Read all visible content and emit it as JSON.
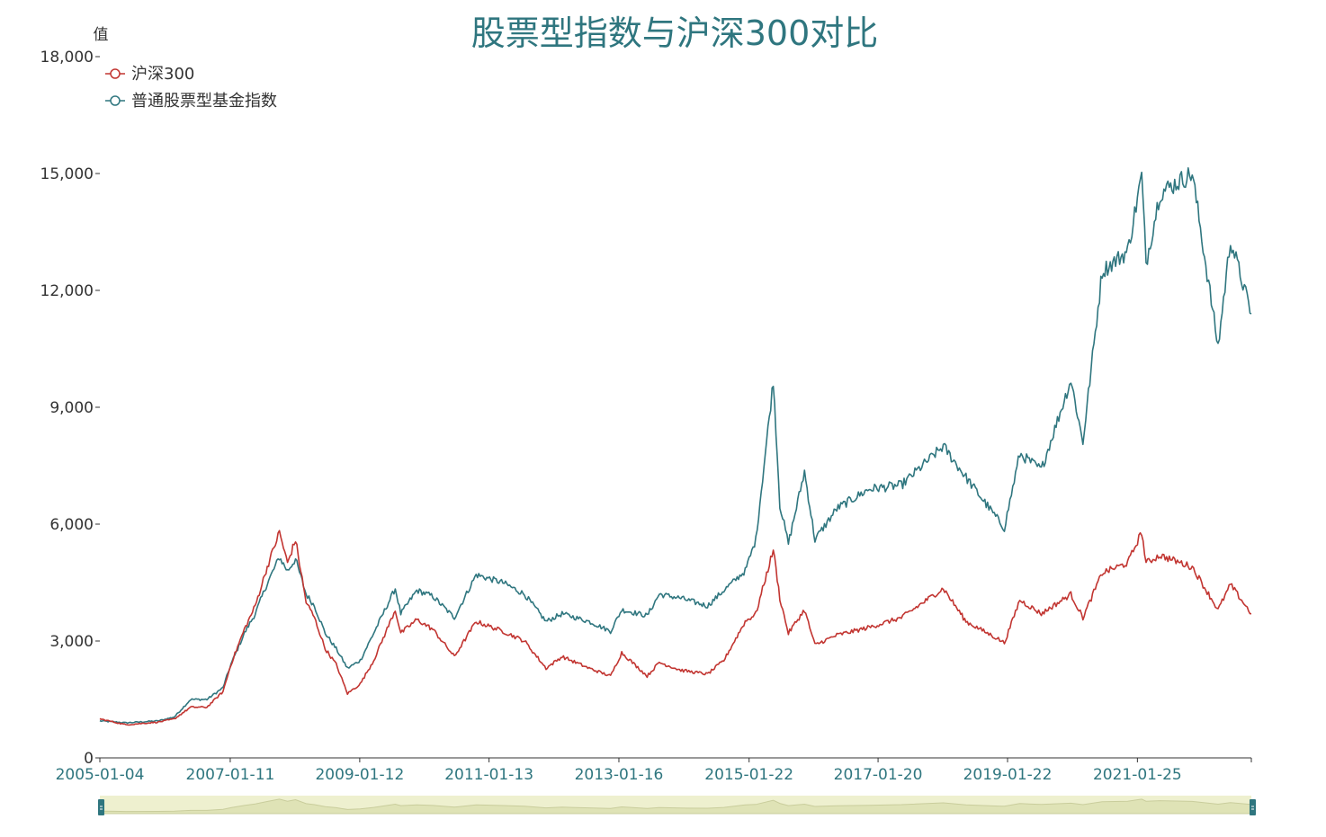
{
  "chart_data": {
    "type": "line",
    "title": "股票型指数与沪深300对比",
    "ylabel": "值",
    "ylim": [
      0,
      18000
    ],
    "yticks": [
      "0",
      "3,000",
      "6,000",
      "9,000",
      "12,000",
      "15,000",
      "18,000"
    ],
    "yvalues": [
      0,
      3000,
      6000,
      9000,
      12000,
      15000,
      18000
    ],
    "xlim": [
      "2005-01-04",
      "2022-10-31"
    ],
    "xticks": [
      "2005-01-04",
      "2007-01-11",
      "2009-01-12",
      "2011-01-13",
      "2013-01-16",
      "2015-01-22",
      "2017-01-20",
      "2019-01-22",
      "2021-01-25"
    ],
    "legend_position": "top-left",
    "grid": false,
    "colors": {
      "hs300": "#c23531",
      "fund": "#2f767f",
      "axis": "#333333",
      "zoom_bg": "#eef0cf"
    },
    "series": [
      {
        "name": "沪深300",
        "color": "#c23531",
        "points": [
          [
            "2005-01-04",
            1000
          ],
          [
            "2005-06-01",
            850
          ],
          [
            "2005-12-01",
            920
          ],
          [
            "2006-03-01",
            1000
          ],
          [
            "2006-06-01",
            1300
          ],
          [
            "2006-09-01",
            1300
          ],
          [
            "2006-12-01",
            1700
          ],
          [
            "2007-01-15",
            2400
          ],
          [
            "2007-04-01",
            3300
          ],
          [
            "2007-06-01",
            3900
          ],
          [
            "2007-08-01",
            4800
          ],
          [
            "2007-10-16",
            5800
          ],
          [
            "2007-12-01",
            5000
          ],
          [
            "2008-01-15",
            5600
          ],
          [
            "2008-03-15",
            4000
          ],
          [
            "2008-05-01",
            3600
          ],
          [
            "2008-07-01",
            2800
          ],
          [
            "2008-09-01",
            2400
          ],
          [
            "2008-11-04",
            1650
          ],
          [
            "2009-01-15",
            1900
          ],
          [
            "2009-04-01",
            2500
          ],
          [
            "2009-08-01",
            3800
          ],
          [
            "2009-09-01",
            3200
          ],
          [
            "2009-12-01",
            3550
          ],
          [
            "2010-03-01",
            3300
          ],
          [
            "2010-07-01",
            2600
          ],
          [
            "2010-11-01",
            3500
          ],
          [
            "2011-04-01",
            3250
          ],
          [
            "2011-08-01",
            3000
          ],
          [
            "2011-12-01",
            2300
          ],
          [
            "2012-03-01",
            2600
          ],
          [
            "2012-08-01",
            2300
          ],
          [
            "2012-11-30",
            2100
          ],
          [
            "2013-02-01",
            2700
          ],
          [
            "2013-06-25",
            2100
          ],
          [
            "2013-09-01",
            2450
          ],
          [
            "2014-01-01",
            2250
          ],
          [
            "2014-06-01",
            2150
          ],
          [
            "2014-09-01",
            2500
          ],
          [
            "2014-12-31",
            3500
          ],
          [
            "2015-03-01",
            3700
          ],
          [
            "2015-06-08",
            5350
          ],
          [
            "2015-07-15",
            4100
          ],
          [
            "2015-09-01",
            3200
          ],
          [
            "2015-12-01",
            3800
          ],
          [
            "2016-01-29",
            2900
          ],
          [
            "2016-06-01",
            3150
          ],
          [
            "2016-12-01",
            3350
          ],
          [
            "2017-06-01",
            3600
          ],
          [
            "2018-01-24",
            4350
          ],
          [
            "2018-06-01",
            3500
          ],
          [
            "2018-12-01",
            3050
          ],
          [
            "2019-01-04",
            2950
          ],
          [
            "2019-04-01",
            4050
          ],
          [
            "2019-08-01",
            3700
          ],
          [
            "2020-01-15",
            4200
          ],
          [
            "2020-03-23",
            3600
          ],
          [
            "2020-07-10",
            4750
          ],
          [
            "2020-12-01",
            5000
          ],
          [
            "2021-02-18",
            5800
          ],
          [
            "2021-03-15",
            5000
          ],
          [
            "2021-06-01",
            5200
          ],
          [
            "2021-12-01",
            4900
          ],
          [
            "2022-04-26",
            3800
          ],
          [
            "2022-07-05",
            4450
          ],
          [
            "2022-10-31",
            3700
          ]
        ]
      },
      {
        "name": "普通股票型基金指数",
        "color": "#2f767f",
        "points": [
          [
            "2005-01-04",
            950
          ],
          [
            "2005-06-01",
            900
          ],
          [
            "2005-12-01",
            950
          ],
          [
            "2006-03-01",
            1050
          ],
          [
            "2006-06-01",
            1500
          ],
          [
            "2006-09-01",
            1500
          ],
          [
            "2006-12-01",
            1800
          ],
          [
            "2007-01-15",
            2400
          ],
          [
            "2007-04-01",
            3200
          ],
          [
            "2007-06-01",
            3700
          ],
          [
            "2007-08-01",
            4400
          ],
          [
            "2007-10-16",
            5150
          ],
          [
            "2007-12-01",
            4800
          ],
          [
            "2008-01-15",
            5100
          ],
          [
            "2008-03-15",
            4200
          ],
          [
            "2008-05-01",
            3900
          ],
          [
            "2008-07-01",
            3200
          ],
          [
            "2008-09-01",
            2800
          ],
          [
            "2008-11-04",
            2300
          ],
          [
            "2009-01-15",
            2500
          ],
          [
            "2009-04-01",
            3200
          ],
          [
            "2009-08-01",
            4350
          ],
          [
            "2009-09-01",
            3700
          ],
          [
            "2009-12-01",
            4300
          ],
          [
            "2010-03-01",
            4150
          ],
          [
            "2010-07-01",
            3600
          ],
          [
            "2010-11-01",
            4700
          ],
          [
            "2011-04-01",
            4500
          ],
          [
            "2011-08-01",
            4200
          ],
          [
            "2011-12-01",
            3500
          ],
          [
            "2012-03-01",
            3700
          ],
          [
            "2012-08-01",
            3500
          ],
          [
            "2012-11-30",
            3250
          ],
          [
            "2013-02-01",
            3800
          ],
          [
            "2013-06-25",
            3650
          ],
          [
            "2013-09-01",
            4200
          ],
          [
            "2014-01-01",
            4100
          ],
          [
            "2014-06-01",
            3900
          ],
          [
            "2014-09-01",
            4300
          ],
          [
            "2014-12-31",
            4800
          ],
          [
            "2015-03-01",
            5600
          ],
          [
            "2015-06-08",
            9700
          ],
          [
            "2015-07-15",
            6500
          ],
          [
            "2015-09-01",
            5500
          ],
          [
            "2015-12-01",
            7350
          ],
          [
            "2016-01-29",
            5600
          ],
          [
            "2016-06-01",
            6400
          ],
          [
            "2016-12-01",
            6900
          ],
          [
            "2017-06-01",
            7000
          ],
          [
            "2018-01-24",
            8000
          ],
          [
            "2018-06-01",
            7200
          ],
          [
            "2018-12-01",
            6100
          ],
          [
            "2019-01-04",
            5900
          ],
          [
            "2019-04-01",
            7800
          ],
          [
            "2019-08-01",
            7400
          ],
          [
            "2020-01-15",
            9700
          ],
          [
            "2020-03-23",
            8100
          ],
          [
            "2020-07-10",
            12500
          ],
          [
            "2020-12-01",
            13000
          ],
          [
            "2021-02-18",
            14950
          ],
          [
            "2021-03-15",
            12700
          ],
          [
            "2021-06-01",
            14500
          ],
          [
            "2021-12-01",
            15000
          ],
          [
            "2022-04-26",
            10550
          ],
          [
            "2022-07-05",
            13300
          ],
          [
            "2022-10-31",
            11400
          ]
        ]
      }
    ]
  }
}
